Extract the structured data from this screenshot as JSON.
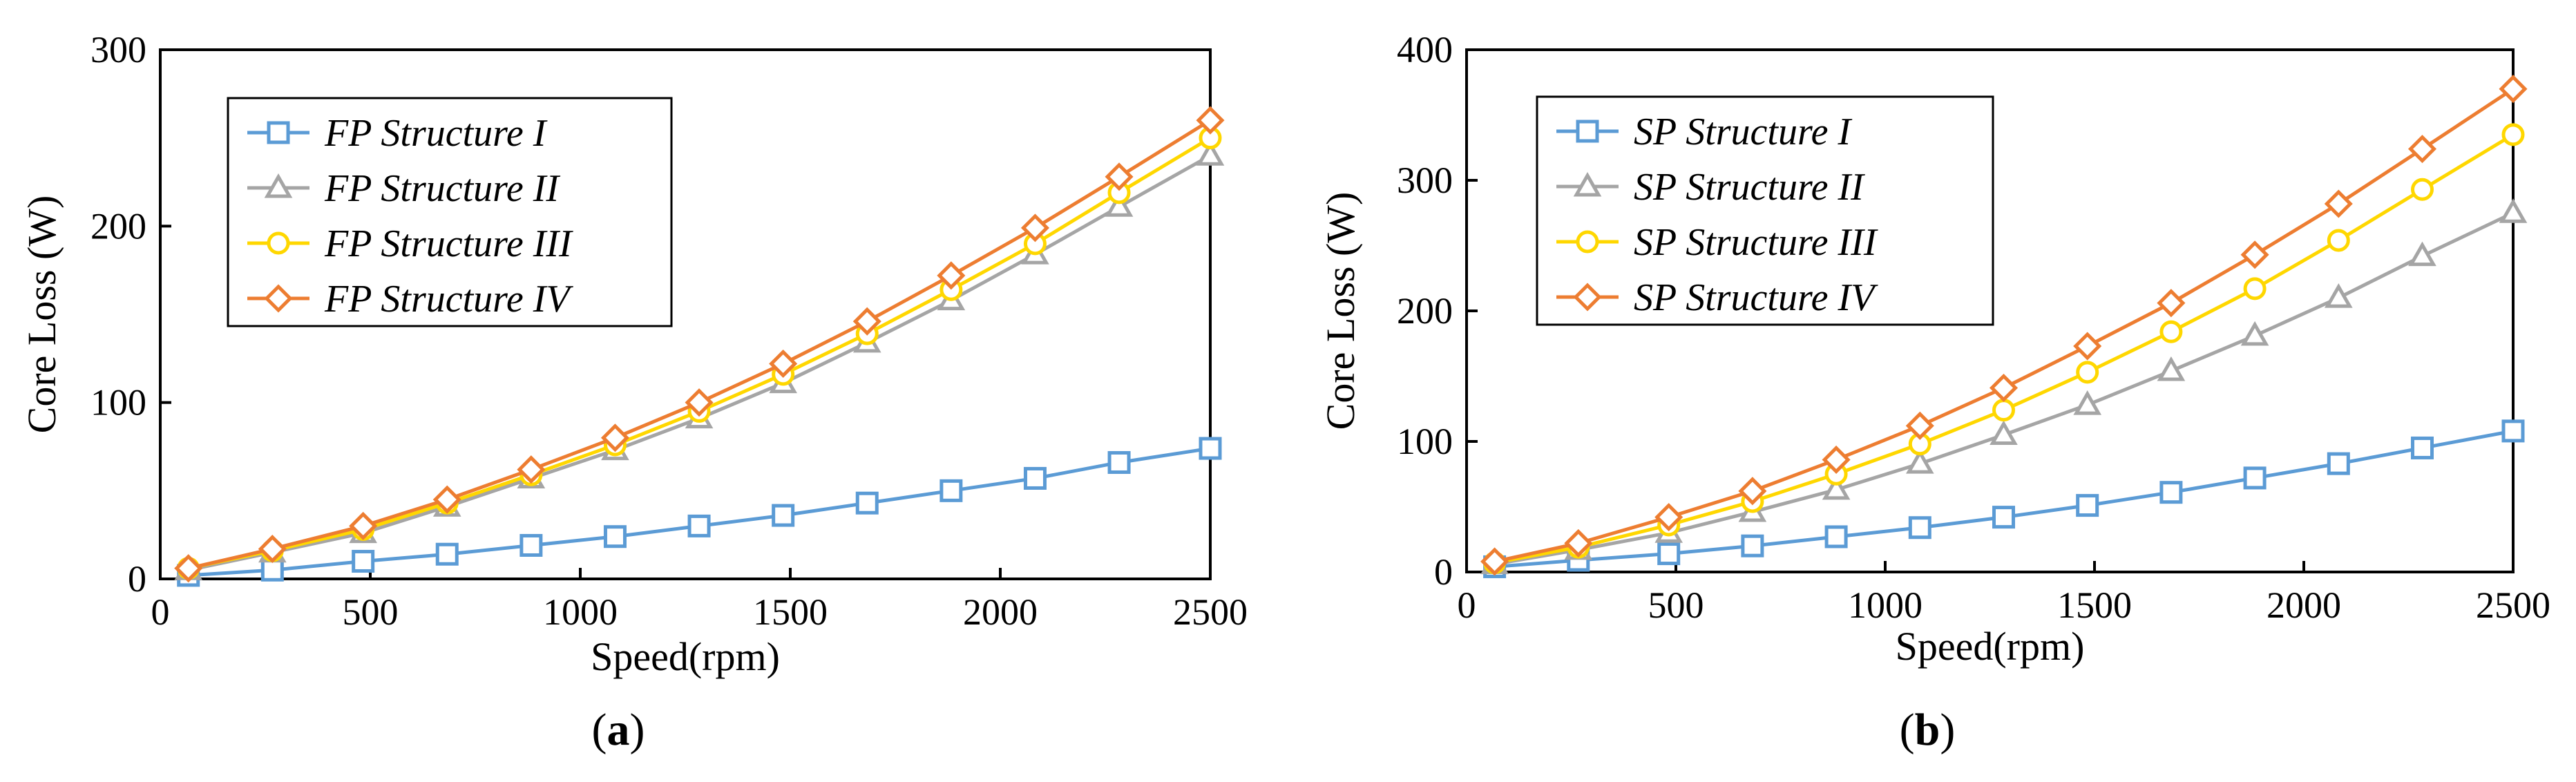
{
  "chart_data": [
    {
      "type": "line",
      "panel_label": "a",
      "title": "",
      "xlabel": "Speed(rpm)",
      "ylabel": "Core Loss (W)",
      "xlim": [
        0,
        2500
      ],
      "ylim": [
        0,
        300
      ],
      "xticks": [
        0,
        500,
        1000,
        1500,
        2000,
        2500
      ],
      "yticks": [
        0,
        100,
        200,
        300
      ],
      "grid": false,
      "legend_position": "top-left",
      "x": [
        67,
        267,
        483,
        683,
        883,
        1083,
        1283,
        1483,
        1683,
        1883,
        2083,
        2283,
        2500
      ],
      "series": [
        {
          "name": "FP Structure I",
          "color": "#5B9BD5",
          "marker": "square",
          "values": [
            2,
            5,
            10,
            14,
            19,
            24,
            30,
            36,
            43,
            50,
            57,
            66,
            74
          ]
        },
        {
          "name": "FP Structure II",
          "color": "#A5A5A5",
          "marker": "triangle",
          "values": [
            5,
            15,
            26,
            41,
            57,
            73,
            91,
            111,
            134,
            158,
            184,
            211,
            240
          ]
        },
        {
          "name": "FP Structure III",
          "color": "#FFD700",
          "marker": "circle",
          "values": [
            6,
            16,
            28,
            43,
            59,
            76,
            95,
            116,
            139,
            164,
            190,
            219,
            250
          ]
        },
        {
          "name": "FP Structure IV",
          "color": "#ED7D31",
          "marker": "diamond",
          "values": [
            6,
            17,
            30,
            45,
            62,
            80,
            100,
            122,
            146,
            172,
            199,
            228,
            260
          ]
        }
      ]
    },
    {
      "type": "line",
      "panel_label": "b",
      "title": "",
      "xlabel": "Speed(rpm)",
      "ylabel": "Core Loss (W)",
      "xlim": [
        0,
        2500
      ],
      "ylim": [
        0,
        400
      ],
      "xticks": [
        0,
        500,
        1000,
        1500,
        2000,
        2500
      ],
      "yticks": [
        0,
        100,
        200,
        300,
        400
      ],
      "grid": false,
      "legend_position": "top-left",
      "x": [
        67,
        267,
        483,
        683,
        883,
        1083,
        1283,
        1483,
        1683,
        1883,
        2083,
        2283,
        2500
      ],
      "series": [
        {
          "name": "SP Structure I",
          "color": "#5B9BD5",
          "marker": "square",
          "values": [
            4,
            9,
            14,
            20,
            27,
            34,
            42,
            51,
            61,
            72,
            83,
            95,
            108
          ]
        },
        {
          "name": "SP Structure II",
          "color": "#A5A5A5",
          "marker": "triangle",
          "values": [
            6,
            17,
            30,
            46,
            63,
            83,
            105,
            128,
            154,
            181,
            210,
            242,
            275
          ]
        },
        {
          "name": "SP Structure III",
          "color": "#FFD700",
          "marker": "circle",
          "values": [
            7,
            19,
            36,
            54,
            75,
            98,
            124,
            153,
            184,
            217,
            254,
            293,
            335
          ]
        },
        {
          "name": "SP Structure IV",
          "color": "#ED7D31",
          "marker": "diamond",
          "values": [
            8,
            22,
            42,
            62,
            86,
            112,
            141,
            173,
            206,
            243,
            282,
            324,
            370
          ]
        }
      ]
    }
  ]
}
